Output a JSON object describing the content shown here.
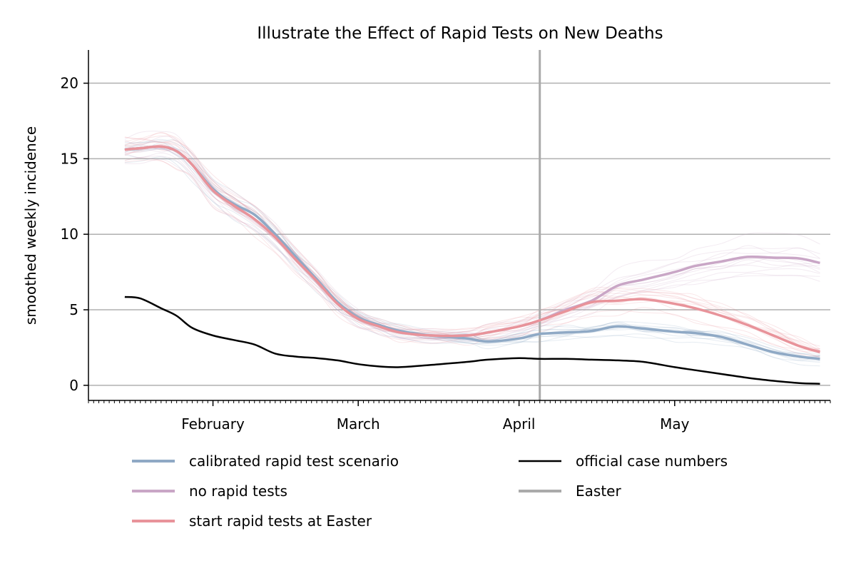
{
  "chart_data": {
    "type": "line",
    "title": "Illustrate the Effect of Rapid Tests on New Deaths",
    "xlabel": "",
    "ylabel": "smoothed weekly incidence",
    "x_axis": {
      "type": "date",
      "range": [
        "2021-01-08",
        "2021-05-31"
      ],
      "tick_labels": [
        {
          "label": "February",
          "date": "2021-02-01"
        },
        {
          "label": "March",
          "date": "2021-03-01"
        },
        {
          "label": "April",
          "date": "2021-04-01"
        },
        {
          "label": "May",
          "date": "2021-05-01"
        }
      ]
    },
    "y_axis": {
      "range": [
        -1.0,
        22.2
      ],
      "ticks": [
        0,
        5,
        10,
        15,
        20
      ],
      "grid": true
    },
    "easter_date": "2021-04-05",
    "legend_position": "bottom",
    "legend": [
      {
        "label": "calibrated rapid test scenario",
        "color": "#8fa9c5"
      },
      {
        "label": "no rapid tests",
        "color": "#c9a6c6"
      },
      {
        "label": "start rapid tests at Easter",
        "color": "#e8939a"
      },
      {
        "label": "official case numbers",
        "color": "#000000"
      },
      {
        "label": "Easter",
        "color": "#aaaaaa"
      }
    ],
    "series": [
      {
        "name": "calibrated rapid test scenario",
        "color": "#8fa9c5",
        "points": [
          [
            "2021-01-15",
            15.6
          ],
          [
            "2021-01-18",
            15.7
          ],
          [
            "2021-01-22",
            15.8
          ],
          [
            "2021-01-25",
            15.5
          ],
          [
            "2021-01-28",
            14.6
          ],
          [
            "2021-02-01",
            13.0
          ],
          [
            "2021-02-05",
            12.0
          ],
          [
            "2021-02-09",
            11.3
          ],
          [
            "2021-02-13",
            10.0
          ],
          [
            "2021-02-17",
            8.5
          ],
          [
            "2021-02-21",
            7.0
          ],
          [
            "2021-02-25",
            5.5
          ],
          [
            "2021-03-01",
            4.5
          ],
          [
            "2021-03-05",
            4.0
          ],
          [
            "2021-03-09",
            3.6
          ],
          [
            "2021-03-15",
            3.3
          ],
          [
            "2021-03-22",
            3.1
          ],
          [
            "2021-03-26",
            2.9
          ],
          [
            "2021-04-01",
            3.1
          ],
          [
            "2021-04-05",
            3.4
          ],
          [
            "2021-04-10",
            3.5
          ],
          [
            "2021-04-15",
            3.6
          ],
          [
            "2021-04-20",
            3.9
          ],
          [
            "2021-04-25",
            3.75
          ],
          [
            "2021-05-01",
            3.55
          ],
          [
            "2021-05-05",
            3.45
          ],
          [
            "2021-05-10",
            3.2
          ],
          [
            "2021-05-15",
            2.7
          ],
          [
            "2021-05-20",
            2.2
          ],
          [
            "2021-05-25",
            1.9
          ],
          [
            "2021-05-29",
            1.75
          ]
        ]
      },
      {
        "name": "no rapid tests",
        "color": "#c9a6c6",
        "points": [
          [
            "2021-01-15",
            15.6
          ],
          [
            "2021-01-18",
            15.7
          ],
          [
            "2021-01-22",
            15.8
          ],
          [
            "2021-01-25",
            15.5
          ],
          [
            "2021-01-28",
            14.6
          ],
          [
            "2021-02-01",
            12.9
          ],
          [
            "2021-02-05",
            11.9
          ],
          [
            "2021-02-09",
            11.0
          ],
          [
            "2021-02-13",
            9.8
          ],
          [
            "2021-02-17",
            8.3
          ],
          [
            "2021-02-21",
            6.9
          ],
          [
            "2021-02-25",
            5.4
          ],
          [
            "2021-03-01",
            4.4
          ],
          [
            "2021-03-05",
            3.9
          ],
          [
            "2021-03-09",
            3.5
          ],
          [
            "2021-03-15",
            3.3
          ],
          [
            "2021-03-22",
            3.3
          ],
          [
            "2021-03-26",
            3.5
          ],
          [
            "2021-04-01",
            3.9
          ],
          [
            "2021-04-05",
            4.3
          ],
          [
            "2021-04-10",
            5.0
          ],
          [
            "2021-04-15",
            5.6
          ],
          [
            "2021-04-20",
            6.6
          ],
          [
            "2021-04-25",
            7.0
          ],
          [
            "2021-05-01",
            7.5
          ],
          [
            "2021-05-05",
            7.9
          ],
          [
            "2021-05-10",
            8.2
          ],
          [
            "2021-05-15",
            8.5
          ],
          [
            "2021-05-20",
            8.45
          ],
          [
            "2021-05-25",
            8.4
          ],
          [
            "2021-05-29",
            8.1
          ]
        ]
      },
      {
        "name": "start rapid tests at Easter",
        "color": "#e8939a",
        "points": [
          [
            "2021-01-15",
            15.6
          ],
          [
            "2021-01-18",
            15.7
          ],
          [
            "2021-01-22",
            15.8
          ],
          [
            "2021-01-25",
            15.5
          ],
          [
            "2021-01-28",
            14.6
          ],
          [
            "2021-02-01",
            12.9
          ],
          [
            "2021-02-05",
            11.9
          ],
          [
            "2021-02-09",
            11.0
          ],
          [
            "2021-02-13",
            9.8
          ],
          [
            "2021-02-17",
            8.3
          ],
          [
            "2021-02-21",
            6.9
          ],
          [
            "2021-02-25",
            5.4
          ],
          [
            "2021-03-01",
            4.4
          ],
          [
            "2021-03-05",
            3.9
          ],
          [
            "2021-03-09",
            3.5
          ],
          [
            "2021-03-15",
            3.3
          ],
          [
            "2021-03-22",
            3.3
          ],
          [
            "2021-03-26",
            3.5
          ],
          [
            "2021-04-01",
            3.9
          ],
          [
            "2021-04-05",
            4.3
          ],
          [
            "2021-04-10",
            4.9
          ],
          [
            "2021-04-15",
            5.5
          ],
          [
            "2021-04-20",
            5.6
          ],
          [
            "2021-04-25",
            5.7
          ],
          [
            "2021-05-01",
            5.4
          ],
          [
            "2021-05-05",
            5.1
          ],
          [
            "2021-05-10",
            4.6
          ],
          [
            "2021-05-15",
            4.0
          ],
          [
            "2021-05-20",
            3.3
          ],
          [
            "2021-05-25",
            2.6
          ],
          [
            "2021-05-29",
            2.2
          ]
        ]
      },
      {
        "name": "official case numbers",
        "color": "#000000",
        "points": [
          [
            "2021-01-15",
            5.85
          ],
          [
            "2021-01-18",
            5.75
          ],
          [
            "2021-01-22",
            5.1
          ],
          [
            "2021-01-25",
            4.6
          ],
          [
            "2021-01-28",
            3.8
          ],
          [
            "2021-02-01",
            3.3
          ],
          [
            "2021-02-05",
            3.0
          ],
          [
            "2021-02-09",
            2.7
          ],
          [
            "2021-02-13",
            2.1
          ],
          [
            "2021-02-17",
            1.9
          ],
          [
            "2021-02-21",
            1.8
          ],
          [
            "2021-02-25",
            1.65
          ],
          [
            "2021-03-01",
            1.4
          ],
          [
            "2021-03-05",
            1.25
          ],
          [
            "2021-03-09",
            1.2
          ],
          [
            "2021-03-15",
            1.35
          ],
          [
            "2021-03-22",
            1.55
          ],
          [
            "2021-03-26",
            1.7
          ],
          [
            "2021-04-01",
            1.8
          ],
          [
            "2021-04-05",
            1.75
          ],
          [
            "2021-04-10",
            1.75
          ],
          [
            "2021-04-15",
            1.7
          ],
          [
            "2021-04-20",
            1.65
          ],
          [
            "2021-04-25",
            1.55
          ],
          [
            "2021-05-01",
            1.2
          ],
          [
            "2021-05-05",
            1.0
          ],
          [
            "2021-05-10",
            0.75
          ],
          [
            "2021-05-15",
            0.5
          ],
          [
            "2021-05-20",
            0.3
          ],
          [
            "2021-05-25",
            0.15
          ],
          [
            "2021-05-29",
            0.1
          ]
        ]
      }
    ]
  }
}
